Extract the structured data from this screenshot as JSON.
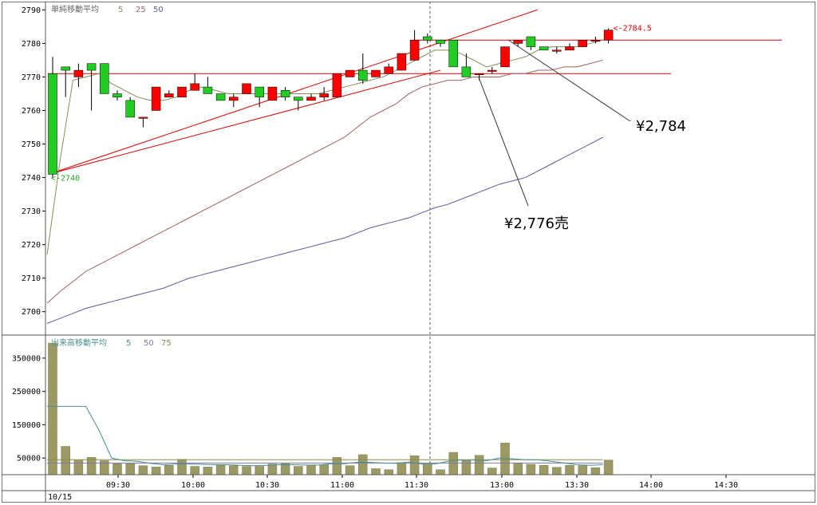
{
  "chart_data": [
    {
      "type": "candlestick",
      "legend": {
        "title": "単純移動平均",
        "periods": [
          "5",
          "25",
          "50"
        ],
        "colors": [
          "#8b8b5a",
          "#a06060",
          "#5a5aa0"
        ]
      },
      "y_ticks": [
        2700,
        2710,
        2720,
        2730,
        2740,
        2750,
        2760,
        2770,
        2780,
        2790
      ],
      "ylim": [
        2693.5,
        2792
      ],
      "x_ticks": [
        "09:30",
        "10:00",
        "10:30",
        "11:00",
        "11:30",
        "13:00",
        "13:30",
        "14:00",
        "14:30"
      ],
      "date_label": "10/15",
      "up_color": "#ff0000",
      "down_color": "#22cc22",
      "candles": [
        [
          2771,
          2776,
          2740,
          2741
        ],
        [
          2773,
          2773,
          2764,
          2772
        ],
        [
          2770,
          2774,
          2767,
          2772
        ],
        [
          2774,
          2774,
          2760,
          2772
        ],
        [
          2774,
          2774,
          2765,
          2765
        ],
        [
          2765,
          2766,
          2763,
          2764
        ],
        [
          2763,
          2764,
          2758,
          2758
        ],
        [
          2758,
          2758,
          2755,
          2758
        ],
        [
          2760,
          2767,
          2760,
          2767
        ],
        [
          2764,
          2766,
          2764,
          2765
        ],
        [
          2764,
          2767,
          2764,
          2767
        ],
        [
          2766,
          2771,
          2766,
          2768
        ],
        [
          2767,
          2770,
          2765,
          2765
        ],
        [
          2765,
          2765,
          2763,
          2763
        ],
        [
          2763,
          2765,
          2761,
          2764
        ],
        [
          2765,
          2768,
          2765,
          2768
        ],
        [
          2767,
          2767,
          2761,
          2764
        ],
        [
          2763,
          2767,
          2763,
          2767
        ],
        [
          2766,
          2767,
          2763,
          2764
        ],
        [
          2764,
          2764,
          2760,
          2763
        ],
        [
          2763,
          2765,
          2763,
          2764
        ],
        [
          2764,
          2767,
          2763,
          2765
        ],
        [
          2764,
          2771,
          2764,
          2771
        ],
        [
          2770,
          2772,
          2770,
          2772
        ],
        [
          2772,
          2777,
          2768,
          2769
        ],
        [
          2770,
          2772,
          2770,
          2772
        ],
        [
          2771,
          2774,
          2771,
          2773
        ],
        [
          2772,
          2777,
          2772,
          2777
        ],
        [
          2775,
          2784,
          2775,
          2781
        ],
        [
          2782,
          2783,
          2780,
          2781
        ],
        [
          2781,
          2781,
          2779,
          2780
        ],
        [
          2781,
          2781,
          2773,
          2773
        ],
        [
          2773,
          2777,
          2770,
          2770
        ],
        [
          2771,
          2771,
          2769,
          2771
        ],
        [
          2772,
          2773,
          2771,
          2772
        ],
        [
          2773,
          2779,
          2773,
          2779
        ],
        [
          2780,
          2781,
          2779,
          2781
        ],
        [
          2782,
          2782,
          2778,
          2779
        ],
        [
          2779,
          2779,
          2778,
          2778
        ],
        [
          2778,
          2779,
          2777,
          2778
        ],
        [
          2778,
          2780,
          2778,
          2779
        ],
        [
          2779,
          2781,
          2779,
          2781
        ],
        [
          2781,
          2782,
          2780,
          2781
        ],
        [
          2781,
          2784.5,
          2780,
          2784
        ]
      ],
      "ma5": [
        2717,
        2745,
        2769,
        2770,
        2771,
        2768,
        2766,
        2764,
        2763,
        2763,
        2764,
        2766,
        2767,
        2766,
        2765,
        2765,
        2765,
        2765,
        2765,
        2765,
        2765,
        2765,
        2766,
        2767,
        2768,
        2769,
        2770,
        2772,
        2774,
        2776,
        2778,
        2778,
        2777,
        2775,
        2773,
        2774,
        2775,
        2776,
        2778,
        2779,
        2779,
        2779,
        2780,
        2781
      ],
      "ma25": [
        2702.5,
        2706,
        2709,
        2712,
        2714,
        2716,
        2718,
        2720,
        2722,
        2724,
        2726,
        2728,
        2730,
        2732,
        2734,
        2736,
        2738,
        2740,
        2742,
        2744,
        2746,
        2748,
        2750,
        2752,
        2755,
        2758,
        2760,
        2762,
        2765,
        2767,
        2768,
        2769,
        2769,
        2770,
        2770,
        2770,
        2771,
        2771,
        2772,
        2772,
        2773,
        2773,
        2774,
        2775
      ],
      "ma50": [
        2696.5,
        2698,
        2699.5,
        2701,
        2702,
        2703,
        2704,
        2705,
        2706,
        2707,
        2708.5,
        2710,
        2711,
        2712,
        2713,
        2714,
        2715,
        2716,
        2717,
        2718,
        2719,
        2720,
        2721,
        2722,
        2723.5,
        2725,
        2726,
        2727,
        2728,
        2729.5,
        2731,
        2732,
        2733.5,
        2735,
        2736.5,
        2738,
        2739,
        2740,
        2742,
        2744,
        2746,
        2748,
        2750,
        2752
      ],
      "hlines": [
        2771,
        2781
      ],
      "trendlines": [
        [
          [
            0,
            2741
          ],
          [
            37.5,
            2790
          ]
        ],
        [
          [
            0,
            2741
          ],
          [
            30,
            2772
          ]
        ]
      ],
      "labels": {
        "low": "<-2740",
        "high": "<-2784.5"
      },
      "annotations": [
        {
          "text": "¥2,784",
          "target": [
            36,
            2781
          ]
        },
        {
          "text": "¥2,776売",
          "target": [
            33,
            2776
          ]
        }
      ]
    },
    {
      "type": "bar",
      "legend": {
        "title": "出来高移動平均",
        "periods": [
          "5",
          "50",
          "75"
        ],
        "colors": [
          "#4a9090",
          "#7a7aa0",
          "#8a8a50"
        ]
      },
      "y_ticks": [
        50000,
        150000,
        250000,
        350000
      ],
      "ylim": [
        0,
        400000
      ],
      "bar_color": "#9c9a64",
      "volumes": [
        395000,
        85000,
        45000,
        52000,
        42000,
        33000,
        33000,
        27000,
        23000,
        28000,
        46000,
        25000,
        23000,
        29000,
        27000,
        25000,
        25000,
        32000,
        33000,
        25000,
        27000,
        30000,
        52000,
        27000,
        60000,
        18000,
        15000,
        36000,
        57000,
        32000,
        15000,
        67000,
        45000,
        58000,
        20000,
        95000,
        35000,
        31000,
        28000,
        22000,
        28000,
        27000,
        21000,
        44000
      ],
      "vma5": [
        205000,
        205000,
        205000,
        205000,
        135000,
        50000,
        42000,
        40000,
        34000,
        30000,
        32000,
        32000,
        31000,
        30000,
        30000,
        28000,
        27000,
        28000,
        30000,
        30000,
        29000,
        29000,
        33000,
        33000,
        37000,
        37000,
        35000,
        34000,
        38000,
        32000,
        32000,
        40000,
        44000,
        44000,
        42000,
        50000,
        48000,
        45000,
        45000,
        40000,
        35000,
        30000,
        28000,
        30000
      ],
      "vma50": [
        35000,
        35000,
        35000,
        35000,
        35000,
        35000,
        35000,
        35000,
        35000,
        35000,
        35000,
        35000,
        35000,
        35000,
        35000,
        35000,
        35000,
        35000,
        35000,
        35000,
        35000,
        35000,
        35000,
        35000,
        35000,
        35000,
        35000,
        35000,
        35000,
        35000,
        35000,
        35000,
        35000,
        35000,
        35000,
        35000,
        35000,
        35000,
        35000,
        35000,
        35000,
        35000,
        35000,
        35000
      ],
      "vma75": [
        45000,
        45000,
        45000,
        45000,
        45000,
        45000,
        45000,
        45000,
        45000,
        45000,
        45000,
        45000,
        45000,
        45000,
        45000,
        45000,
        45000,
        45000,
        45000,
        45000,
        45000,
        45000,
        45000,
        45000,
        45000,
        45000,
        45000,
        45000,
        45000,
        45000,
        45000,
        45000,
        45000,
        45000,
        45000,
        45000,
        45000,
        45000,
        45000,
        45000,
        45000,
        45000,
        45000,
        45000
      ]
    }
  ]
}
